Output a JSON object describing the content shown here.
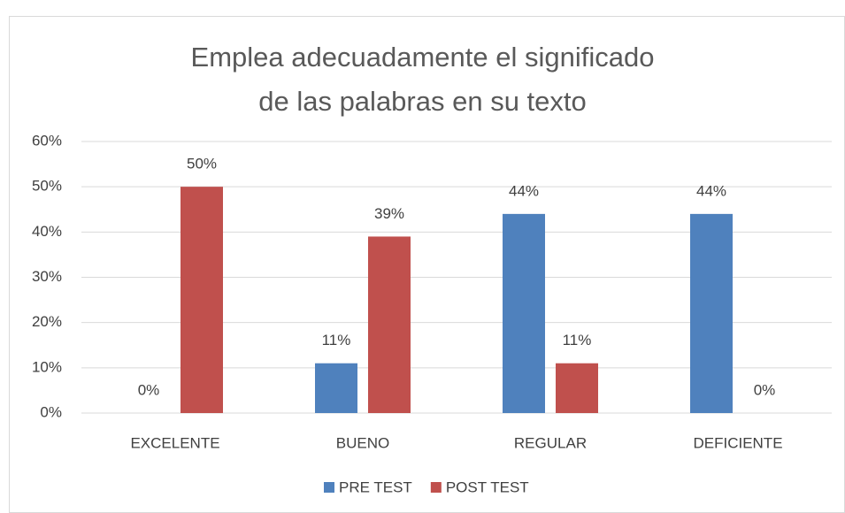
{
  "chart_data": {
    "type": "bar",
    "title": "Emplea adecuadamente el significado de las palabras en su texto",
    "categories": [
      "EXCELENTE",
      "BUENO",
      "REGULAR",
      "DEFICIENTE"
    ],
    "series": [
      {
        "name": "PRE TEST",
        "color": "#4f81bd",
        "values": [
          0,
          11,
          44,
          44
        ],
        "value_labels": [
          "0%",
          "11%",
          "44%",
          "44%"
        ]
      },
      {
        "name": "POST TEST",
        "color": "#c0504d",
        "values": [
          50,
          39,
          11,
          0
        ],
        "value_labels": [
          "50%",
          "39%",
          "11%",
          "0%"
        ]
      }
    ],
    "ylim": [
      0,
      60
    ],
    "yticks": [
      {
        "value": 0,
        "label": "0%"
      },
      {
        "value": 10,
        "label": "10%"
      },
      {
        "value": 20,
        "label": "20%"
      },
      {
        "value": 30,
        "label": "30%"
      },
      {
        "value": 40,
        "label": "40%"
      },
      {
        "value": 50,
        "label": "50%"
      },
      {
        "value": 60,
        "label": "60%"
      }
    ],
    "grid": true,
    "legend": "bottom"
  }
}
